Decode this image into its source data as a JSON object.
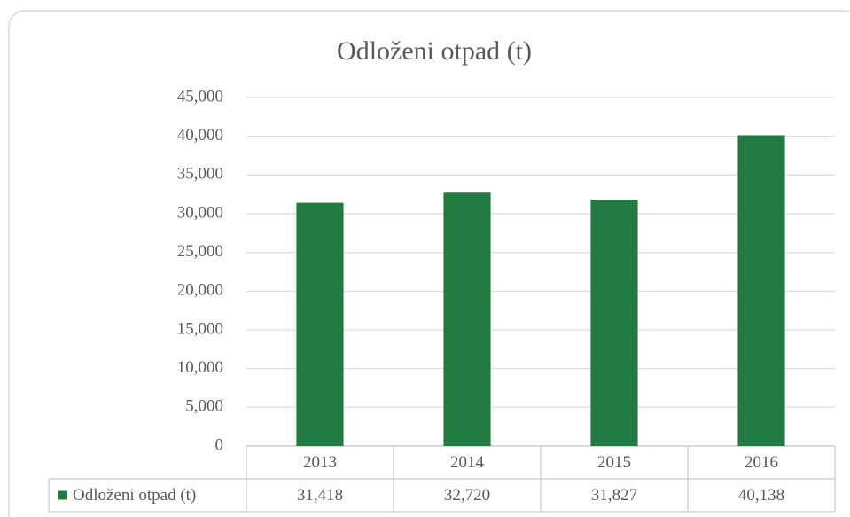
{
  "chart_data": {
    "type": "bar",
    "title": "Odloženi otpad (t)",
    "categories": [
      "2013",
      "2014",
      "2015",
      "2016"
    ],
    "series": [
      {
        "name": "Odloženi otpad (t)",
        "color": "#217a3f",
        "values": [
          31418,
          32720,
          31827,
          40138
        ],
        "value_labels": [
          "31,418",
          "32,720",
          "31,827",
          "40,138"
        ]
      }
    ],
    "ylim": [
      0,
      45000
    ],
    "yticks": [
      0,
      {
        "value": 5000,
        "label": "5,000"
      },
      {
        "value": 10000,
        "label": "10,000"
      },
      {
        "value": 15000,
        "label": "15,000"
      },
      {
        "value": 20000,
        "label": "20,000"
      },
      {
        "value": 25000,
        "label": "25,000"
      },
      {
        "value": 30000,
        "label": "30,000"
      },
      {
        "value": 35000,
        "label": "35,000"
      },
      {
        "value": 40000,
        "label": "40,000"
      },
      {
        "value": 45000,
        "label": "45,000"
      }
    ],
    "grid": true,
    "data_table": true
  }
}
